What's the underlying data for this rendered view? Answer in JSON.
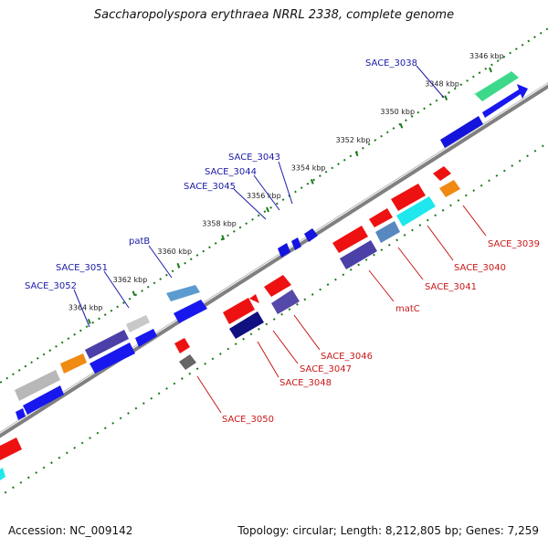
{
  "title": "Saccharopolyspora erythraea NRRL 2338, complete genome",
  "footer": {
    "accession": "Accession: NC_009142",
    "summary": "Topology: circular; Length: 8,212,805 bp; Genes: 7,259"
  },
  "ticks": [
    {
      "label": "3346 kbp",
      "kbp": 3346
    },
    {
      "label": "3348 kbp",
      "kbp": 3348
    },
    {
      "label": "3350 kbp",
      "kbp": 3350
    },
    {
      "label": "3352 kbp",
      "kbp": 3352
    },
    {
      "label": "3354 kbp",
      "kbp": 3354
    },
    {
      "label": "3356 kbp",
      "kbp": 3356
    },
    {
      "label": "3358 kbp",
      "kbp": 3358
    },
    {
      "label": "3360 kbp",
      "kbp": 3360
    },
    {
      "label": "3362 kbp",
      "kbp": 3362
    },
    {
      "label": "3364 kbp",
      "kbp": 3364
    }
  ],
  "forward_genes": [
    {
      "name": "SACE_3038",
      "color": "#2e8b57"
    },
    {
      "name": "SACE_3043",
      "color": "#1010ee"
    },
    {
      "name": "SACE_3044",
      "color": "#1010ee"
    },
    {
      "name": "SACE_3045",
      "color": "#1010ee"
    },
    {
      "name": "patB",
      "color": "#4682b4"
    },
    {
      "name": "SACE_3051",
      "color": "#a9a9a9"
    },
    {
      "name": "SACE_3052",
      "color": "#4b3fa8"
    }
  ],
  "reverse_genes": [
    {
      "name": "SACE_3039",
      "color": "#ff8c00"
    },
    {
      "name": "SACE_3040",
      "color": "#ee1111"
    },
    {
      "name": "SACE_3041",
      "color": "#4682b4"
    },
    {
      "name": "matC",
      "color": "#483d8b"
    },
    {
      "name": "SACE_3046",
      "color": "#ee1111"
    },
    {
      "name": "SACE_3047",
      "color": "#483d8b"
    },
    {
      "name": "SACE_3048",
      "color": "#000080"
    },
    {
      "name": "SACE_3050",
      "color": "#555555"
    }
  ],
  "colors": {
    "backbone": "#808080",
    "tick": "#1a7a1a",
    "label_forward": "#1a1aa8",
    "label_reverse": "#c81818"
  }
}
